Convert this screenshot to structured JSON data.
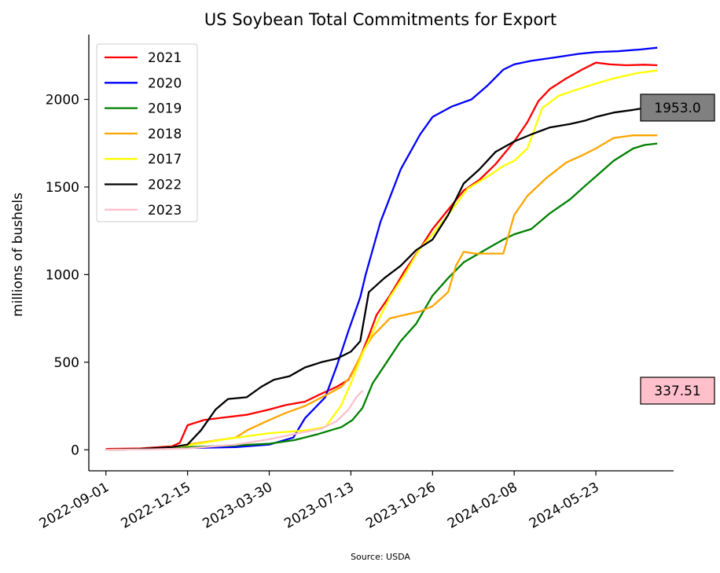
{
  "chart_data": {
    "type": "line",
    "title": "US Soybean Total Commitments for Export",
    "ylabel": "millions of bushels",
    "xlabel": "",
    "source": "Source: USDA",
    "x_ticks": [
      "2022-09-01",
      "2022-12-15",
      "2023-03-30",
      "2023-07-13",
      "2023-10-26",
      "2024-02-08",
      "2024-05-23"
    ],
    "y_ticks": [
      0,
      500,
      1000,
      1500,
      2000
    ],
    "xlim": [
      "2022-08-10",
      "2024-08-31"
    ],
    "ylim": [
      -120,
      2370
    ],
    "legend_position": "upper-left",
    "series": [
      {
        "name": "2021",
        "color": "#ff0000",
        "points": [
          [
            "2022-09-01",
            5
          ],
          [
            "2022-10-15",
            8
          ],
          [
            "2022-11-25",
            20
          ],
          [
            "2022-12-05",
            40
          ],
          [
            "2022-12-15",
            140
          ],
          [
            "2023-01-05",
            170
          ],
          [
            "2023-02-01",
            185
          ],
          [
            "2023-03-01",
            200
          ],
          [
            "2023-03-30",
            230
          ],
          [
            "2023-04-20",
            255
          ],
          [
            "2023-05-15",
            275
          ],
          [
            "2023-06-05",
            320
          ],
          [
            "2023-06-25",
            360
          ],
          [
            "2023-07-10",
            400
          ],
          [
            "2023-07-25",
            530
          ],
          [
            "2023-08-05",
            650
          ],
          [
            "2023-08-15",
            770
          ],
          [
            "2023-09-01",
            880
          ],
          [
            "2023-09-20",
            1020
          ],
          [
            "2023-10-10",
            1150
          ],
          [
            "2023-10-26",
            1260
          ],
          [
            "2023-11-15",
            1370
          ],
          [
            "2023-12-05",
            1480
          ],
          [
            "2023-12-25",
            1540
          ],
          [
            "2024-01-15",
            1630
          ],
          [
            "2024-02-08",
            1760
          ],
          [
            "2024-02-25",
            1870
          ],
          [
            "2024-03-10",
            1990
          ],
          [
            "2024-03-25",
            2060
          ],
          [
            "2024-04-15",
            2120
          ],
          [
            "2024-05-05",
            2170
          ],
          [
            "2024-05-23",
            2210
          ],
          [
            "2024-06-10",
            2200
          ],
          [
            "2024-07-01",
            2195
          ],
          [
            "2024-07-25",
            2198
          ],
          [
            "2024-08-10",
            2195
          ]
        ]
      },
      {
        "name": "2020",
        "color": "#0000ff",
        "points": [
          [
            "2022-09-01",
            0
          ],
          [
            "2022-11-01",
            5
          ],
          [
            "2022-12-15",
            10
          ],
          [
            "2023-02-15",
            15
          ],
          [
            "2023-03-30",
            30
          ],
          [
            "2023-04-30",
            70
          ],
          [
            "2023-05-15",
            180
          ],
          [
            "2023-06-10",
            300
          ],
          [
            "2023-06-25",
            480
          ],
          [
            "2023-07-10",
            680
          ],
          [
            "2023-07-25",
            870
          ],
          [
            "2023-08-01",
            1000
          ],
          [
            "2023-08-20",
            1300
          ],
          [
            "2023-09-15",
            1600
          ],
          [
            "2023-10-10",
            1800
          ],
          [
            "2023-10-26",
            1900
          ],
          [
            "2023-11-20",
            1960
          ],
          [
            "2023-12-15",
            2000
          ],
          [
            "2024-01-05",
            2080
          ],
          [
            "2024-01-25",
            2170
          ],
          [
            "2024-02-08",
            2200
          ],
          [
            "2024-03-01",
            2220
          ],
          [
            "2024-04-01",
            2240
          ],
          [
            "2024-05-01",
            2260
          ],
          [
            "2024-05-23",
            2270
          ],
          [
            "2024-06-20",
            2275
          ],
          [
            "2024-07-20",
            2285
          ],
          [
            "2024-08-10",
            2295
          ]
        ]
      },
      {
        "name": "2019",
        "color": "#008000",
        "points": [
          [
            "2022-09-01",
            0
          ],
          [
            "2022-11-15",
            5
          ],
          [
            "2022-12-15",
            15
          ],
          [
            "2023-02-15",
            25
          ],
          [
            "2023-03-30",
            35
          ],
          [
            "2023-05-01",
            55
          ],
          [
            "2023-06-01",
            90
          ],
          [
            "2023-07-01",
            130
          ],
          [
            "2023-07-15",
            170
          ],
          [
            "2023-07-28",
            240
          ],
          [
            "2023-08-10",
            380
          ],
          [
            "2023-08-25",
            480
          ],
          [
            "2023-09-15",
            620
          ],
          [
            "2023-10-05",
            720
          ],
          [
            "2023-10-26",
            880
          ],
          [
            "2023-11-15",
            980
          ],
          [
            "2023-12-05",
            1070
          ],
          [
            "2024-01-01",
            1140
          ],
          [
            "2024-01-25",
            1200
          ],
          [
            "2024-02-08",
            1230
          ],
          [
            "2024-03-01",
            1260
          ],
          [
            "2024-03-25",
            1350
          ],
          [
            "2024-04-20",
            1430
          ],
          [
            "2024-05-10",
            1510
          ],
          [
            "2024-05-23",
            1560
          ],
          [
            "2024-06-15",
            1650
          ],
          [
            "2024-07-10",
            1720
          ],
          [
            "2024-07-25",
            1740
          ],
          [
            "2024-08-10",
            1748
          ]
        ]
      },
      {
        "name": "2018",
        "color": "#ffa500",
        "points": [
          [
            "2022-09-01",
            0
          ],
          [
            "2022-10-15",
            5
          ],
          [
            "2022-11-25",
            15
          ],
          [
            "2022-12-15",
            30
          ],
          [
            "2023-01-15",
            50
          ],
          [
            "2023-02-15",
            70
          ],
          [
            "2023-03-01",
            110
          ],
          [
            "2023-03-30",
            170
          ],
          [
            "2023-04-20",
            210
          ],
          [
            "2023-05-15",
            250
          ],
          [
            "2023-06-10",
            310
          ],
          [
            "2023-07-01",
            360
          ],
          [
            "2023-07-13",
            420
          ],
          [
            "2023-07-28",
            560
          ],
          [
            "2023-08-10",
            650
          ],
          [
            "2023-09-01",
            750
          ],
          [
            "2023-09-20",
            770
          ],
          [
            "2023-10-10",
            790
          ],
          [
            "2023-10-26",
            820
          ],
          [
            "2023-11-15",
            900
          ],
          [
            "2023-11-25",
            1050
          ],
          [
            "2023-12-05",
            1130
          ],
          [
            "2023-12-20",
            1120
          ],
          [
            "2024-01-10",
            1120
          ],
          [
            "2024-01-25",
            1120
          ],
          [
            "2024-02-08",
            1340
          ],
          [
            "2024-02-25",
            1450
          ],
          [
            "2024-03-20",
            1550
          ],
          [
            "2024-04-15",
            1640
          ],
          [
            "2024-05-05",
            1680
          ],
          [
            "2024-05-23",
            1720
          ],
          [
            "2024-06-15",
            1780
          ],
          [
            "2024-07-10",
            1795
          ],
          [
            "2024-08-10",
            1795
          ]
        ]
      },
      {
        "name": "2017",
        "color": "#ffff00",
        "points": [
          [
            "2022-09-01",
            0
          ],
          [
            "2022-11-01",
            5
          ],
          [
            "2022-12-15",
            25
          ],
          [
            "2023-02-01",
            60
          ],
          [
            "2023-03-30",
            95
          ],
          [
            "2023-05-15",
            110
          ],
          [
            "2023-06-10",
            130
          ],
          [
            "2023-06-30",
            250
          ],
          [
            "2023-07-13",
            380
          ],
          [
            "2023-07-28",
            550
          ],
          [
            "2023-08-15",
            720
          ],
          [
            "2023-09-01",
            870
          ],
          [
            "2023-09-20",
            1000
          ],
          [
            "2023-10-10",
            1150
          ],
          [
            "2023-10-26",
            1230
          ],
          [
            "2023-11-20",
            1370
          ],
          [
            "2023-12-10",
            1490
          ],
          [
            "2024-01-05",
            1560
          ],
          [
            "2024-01-25",
            1620
          ],
          [
            "2024-02-08",
            1650
          ],
          [
            "2024-02-25",
            1720
          ],
          [
            "2024-03-15",
            1950
          ],
          [
            "2024-04-05",
            2020
          ],
          [
            "2024-05-01",
            2060
          ],
          [
            "2024-05-23",
            2090
          ],
          [
            "2024-06-15",
            2120
          ],
          [
            "2024-07-15",
            2150
          ],
          [
            "2024-08-10",
            2165
          ]
        ]
      },
      {
        "name": "2022",
        "color": "#000000",
        "points": [
          [
            "2022-09-01",
            0
          ],
          [
            "2022-10-15",
            5
          ],
          [
            "2022-11-25",
            15
          ],
          [
            "2022-12-15",
            30
          ],
          [
            "2023-01-01",
            110
          ],
          [
            "2023-01-20",
            230
          ],
          [
            "2023-02-05",
            290
          ],
          [
            "2023-03-01",
            300
          ],
          [
            "2023-03-20",
            360
          ],
          [
            "2023-04-05",
            400
          ],
          [
            "2023-04-25",
            420
          ],
          [
            "2023-05-15",
            470
          ],
          [
            "2023-06-05",
            500
          ],
          [
            "2023-06-25",
            520
          ],
          [
            "2023-07-13",
            560
          ],
          [
            "2023-07-25",
            620
          ],
          [
            "2023-08-05",
            900
          ],
          [
            "2023-08-25",
            980
          ],
          [
            "2023-09-15",
            1050
          ],
          [
            "2023-10-05",
            1140
          ],
          [
            "2023-10-26",
            1200
          ],
          [
            "2023-11-15",
            1340
          ],
          [
            "2023-12-05",
            1520
          ],
          [
            "2023-12-25",
            1600
          ],
          [
            "2024-01-15",
            1700
          ],
          [
            "2024-02-08",
            1760
          ],
          [
            "2024-03-01",
            1800
          ],
          [
            "2024-03-25",
            1840
          ],
          [
            "2024-04-20",
            1860
          ],
          [
            "2024-05-10",
            1880
          ],
          [
            "2024-05-23",
            1900
          ],
          [
            "2024-06-15",
            1925
          ],
          [
            "2024-07-10",
            1940
          ],
          [
            "2024-07-28",
            1953
          ]
        ]
      },
      {
        "name": "2023",
        "color": "#ffc0cb",
        "points": [
          [
            "2022-09-01",
            0
          ],
          [
            "2022-11-01",
            3
          ],
          [
            "2022-12-15",
            8
          ],
          [
            "2023-02-15",
            30
          ],
          [
            "2023-03-30",
            60
          ],
          [
            "2023-05-01",
            90
          ],
          [
            "2023-06-05",
            120
          ],
          [
            "2023-06-25",
            165
          ],
          [
            "2023-07-10",
            230
          ],
          [
            "2023-07-20",
            300
          ],
          [
            "2023-07-28",
            337.51
          ]
        ]
      }
    ],
    "annotations": [
      {
        "text": "1953.0",
        "value": 1953.0,
        "background": "#808080"
      },
      {
        "text": "337.51",
        "value": 337.51,
        "background": "#ffc0cb"
      }
    ]
  }
}
